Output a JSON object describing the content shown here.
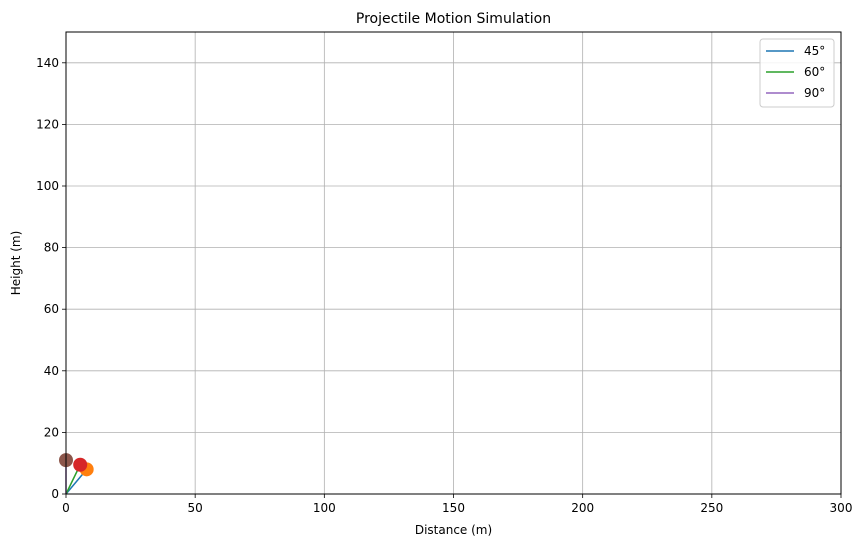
{
  "chart_data": {
    "type": "line",
    "title": "Projectile Motion Simulation",
    "xlabel": "Distance (m)",
    "ylabel": "Height (m)",
    "xlim": [
      0,
      300
    ],
    "ylim": [
      0,
      150
    ],
    "xticks": [
      0,
      50,
      100,
      150,
      200,
      250,
      300
    ],
    "yticks": [
      0,
      20,
      40,
      60,
      80,
      100,
      120,
      140
    ],
    "grid": true,
    "legend_position": "top-right",
    "series": [
      {
        "name": "45°",
        "color": "#1f77b4",
        "x": [
          0,
          8
        ],
        "y": [
          0,
          8
        ]
      },
      {
        "name": "60°",
        "color": "#2ca02c",
        "x": [
          0,
          5.5
        ],
        "y": [
          0,
          9.5
        ]
      },
      {
        "name": "90°",
        "color": "#9467bd",
        "x": [
          0,
          0
        ],
        "y": [
          0,
          11
        ]
      }
    ],
    "markers": [
      {
        "x": 8,
        "y": 8,
        "color": "#ff7f0e"
      },
      {
        "x": 5.5,
        "y": 9.5,
        "color": "#d62728"
      },
      {
        "x": 0,
        "y": 11,
        "color": "#8c564b"
      }
    ]
  }
}
